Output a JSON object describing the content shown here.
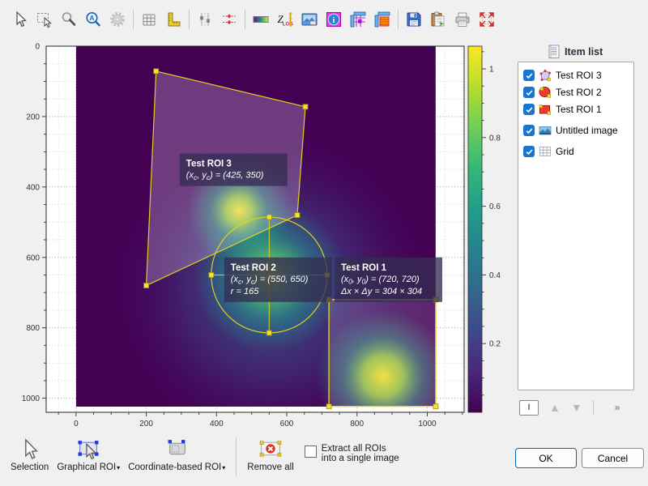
{
  "window": {
    "bg": "#f0f0f0",
    "accent_ok_border": "#0067c0",
    "checkbox_accent": "#1875d1",
    "roi_yellow": "#e3cf1f"
  },
  "toolbar": {
    "groups": [
      [
        "pointer-select",
        "rectangle-zoom",
        "magnifier",
        "zoom-fit",
        "settings"
      ],
      [
        "show-grid",
        "ruler"
      ],
      [
        "contrast-adjust",
        "level-adjust"
      ],
      [
        "colormap",
        "z-log-scale",
        "image-levels",
        "image-info",
        "cross-section",
        "average-cross-section"
      ],
      [
        "save",
        "copy-to-clipboard",
        "print",
        "auto-fit"
      ]
    ]
  },
  "roi_toolbar": {
    "items": [
      {
        "icon": "selection-arrow",
        "name": "selection-tool-button",
        "label": "Selection",
        "dropdown": false,
        "sep_before": false
      },
      {
        "icon": "graphical-roi",
        "name": "graphical-roi-button",
        "label": "Graphical ROI",
        "dropdown": true,
        "sep_before": false
      },
      {
        "icon": "coordinate-roi",
        "name": "coordinate-based-roi-button",
        "label": "Coordinate-based ROI",
        "dropdown": true,
        "sep_before": false
      },
      {
        "icon": "remove-all",
        "name": "remove-all-button",
        "label": "Remove all",
        "dropdown": false,
        "sep_before": true
      }
    ],
    "checkbox": {
      "checked": false,
      "lines": [
        "Extract all ROIs",
        "into a single image"
      ]
    }
  },
  "item_list": {
    "title": "Item list",
    "items": [
      {
        "icon": "polygon-roi",
        "label": "Test ROI 3",
        "checked": true,
        "gap": false
      },
      {
        "icon": "circle-roi",
        "label": "Test ROI 2",
        "checked": true,
        "gap": false
      },
      {
        "icon": "rect-roi",
        "label": "Test ROI 1",
        "checked": true,
        "gap": false
      },
      {
        "icon": "image",
        "label": "Untitled image",
        "checked": true,
        "gap": true
      },
      {
        "icon": "grid",
        "label": "Grid",
        "checked": true,
        "gap": true
      }
    ],
    "controls": {
      "param_button": "I",
      "up": "▲",
      "down": "▼",
      "more": "»"
    }
  },
  "dialog_buttons": {
    "ok": "OK",
    "cancel": "Cancel"
  },
  "chart_data": {
    "type": "heatmap",
    "title": "",
    "x_range": [
      -85,
      1105
    ],
    "y_range": [
      0,
      1040
    ],
    "y_inverted": true,
    "x_ticks": [
      0,
      200,
      400,
      600,
      800,
      1000
    ],
    "y_ticks": [
      0,
      200,
      400,
      600,
      800,
      1000
    ],
    "major_step": 200,
    "minor_step": 50,
    "grid": true,
    "image": {
      "x0": 0,
      "y0": 0,
      "x1": 1024,
      "y1": 1024,
      "bg": "#440154",
      "blobs": [
        {
          "name": "background-glow",
          "cx": 555,
          "cy": 690,
          "r": 480,
          "stops": [
            [
              0,
              "#31688e",
              0.85
            ],
            [
              0.5,
              "#3e4989",
              0.5
            ],
            [
              1,
              "#440154",
              0
            ]
          ]
        },
        {
          "name": "gaussian-center",
          "cx": 550,
          "cy": 655,
          "r": 215,
          "stops": [
            [
              0,
              "#c5e021",
              0.95
            ],
            [
              0.3,
              "#4ec36e",
              0.8
            ],
            [
              0.6,
              "#21918c",
              0.5
            ],
            [
              1,
              "#21918c",
              0
            ]
          ]
        },
        {
          "name": "gaussian-upper",
          "cx": 464,
          "cy": 467,
          "r": 150,
          "stops": [
            [
              0,
              "#fde725",
              1
            ],
            [
              0.25,
              "#9fd938",
              0.92
            ],
            [
              0.55,
              "#28ae80",
              0.5
            ],
            [
              1,
              "#28ae80",
              0
            ]
          ]
        },
        {
          "name": "gaussian-lower-right",
          "cx": 874,
          "cy": 938,
          "r": 190,
          "stops": [
            [
              0,
              "#f6e51f",
              1
            ],
            [
              0.3,
              "#9fd938",
              0.88
            ],
            [
              0.6,
              "#28ae80",
              0.45
            ],
            [
              1,
              "#28ae80",
              0
            ]
          ]
        }
      ]
    },
    "colorbar": {
      "min": 0,
      "max": 1.066,
      "ticks": [
        0.2,
        0.4,
        0.6,
        0.8,
        1
      ],
      "minor_step": 0.05,
      "colors": [
        "#440154",
        "#482878",
        "#3e4989",
        "#31688e",
        "#26828e",
        "#1f9e89",
        "#35b779",
        "#6ece58",
        "#b5de2b",
        "#fde725"
      ]
    },
    "roi_style": {
      "stroke": "#e3cf1f",
      "handle_fill": "#f3e135",
      "handle_stroke": "#a08c10",
      "label_bg": "rgba(52,45,82,0.78)",
      "label_fg": "#ffffff"
    },
    "rois": [
      {
        "type": "polygon",
        "name": "Test ROI 3",
        "points": [
          [
            228,
            71
          ],
          [
            653,
            172
          ],
          [
            630,
            480
          ],
          [
            200,
            680
          ]
        ],
        "fill": "rgba(222,210,238,0.28)",
        "label": {
          "title": "Test ROI 3",
          "lines": [
            "(x~c~, y~c~) = (425, 350)"
          ],
          "pos": [
            295,
            305
          ]
        }
      },
      {
        "type": "circle",
        "name": "Test ROI 2",
        "cx": 550,
        "cy": 650,
        "r": 165,
        "fill": "none",
        "label": {
          "title": "Test ROI 2",
          "lines": [
            "(x~c~, y~c~) = (550, 650)",
            "r = 165"
          ],
          "pos": [
            422,
            600
          ]
        }
      },
      {
        "type": "rectangle",
        "name": "Test ROI 1",
        "x0": 720,
        "y0": 720,
        "dx": 304,
        "dy": 304,
        "fill": "rgba(222,210,238,0.18)",
        "label": {
          "title": "Test ROI 1",
          "lines": [
            "(x~0~, y~0~) = (720, 720)",
            "Δx × Δy = 304 × 304"
          ],
          "pos": [
            736,
            600
          ]
        }
      }
    ]
  }
}
